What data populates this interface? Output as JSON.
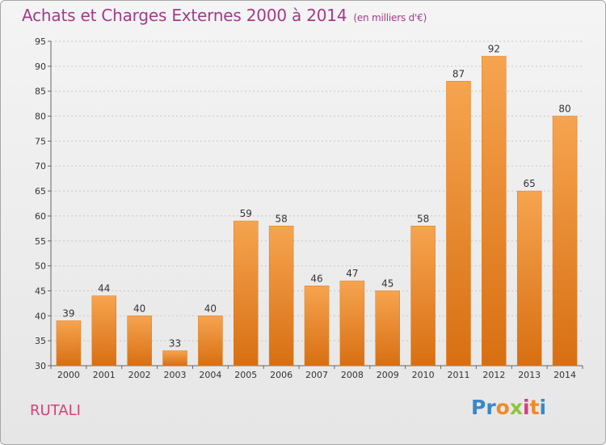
{
  "chart_data": {
    "type": "bar",
    "title": "Achats et Charges Externes 2000 à 2014",
    "subtitle": "(en milliers d'€)",
    "categories": [
      "2000",
      "2001",
      "2002",
      "2003",
      "2004",
      "2005",
      "2006",
      "2007",
      "2008",
      "2009",
      "2010",
      "2011",
      "2012",
      "2013",
      "2014"
    ],
    "values": [
      39,
      44,
      40,
      33,
      40,
      59,
      58,
      46,
      47,
      45,
      58,
      87,
      92,
      65,
      80
    ],
    "ylim": [
      30,
      95
    ],
    "yticks": [
      30,
      35,
      40,
      45,
      50,
      55,
      60,
      65,
      70,
      75,
      80,
      85,
      90,
      95
    ],
    "grid": true,
    "bar_color": "#f08a2a",
    "bar_color_light": "#f6a450",
    "bar_color_dark": "#d86f12"
  },
  "footer": {
    "town": "RUTALI",
    "logo_text": "Proxiti",
    "logo_colors": [
      "#3a87c8",
      "#3a87c8",
      "#f08a2a",
      "#8bc540",
      "#d43f80",
      "#f08a2a",
      "#3a87c8"
    ]
  }
}
